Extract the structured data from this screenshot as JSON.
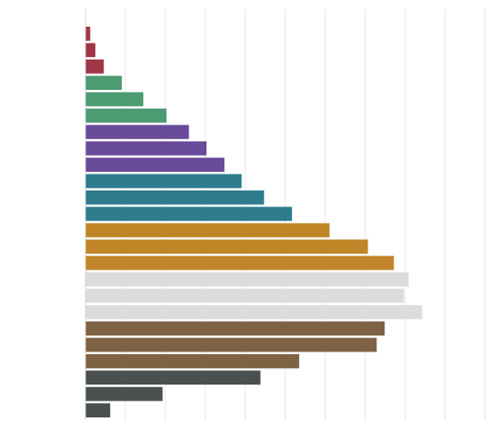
{
  "chart_data": {
    "type": "bar",
    "orientation": "horizontal",
    "xlim": [
      0,
      100
    ],
    "grid": true,
    "series": [
      {
        "color": "#a13646",
        "values": [
          1.2,
          2.5,
          4.6
        ]
      },
      {
        "color": "#4c9b72",
        "values": [
          9.1,
          14.5,
          20.3
        ]
      },
      {
        "color": "#6a4a9a",
        "values": [
          25.9,
          30.3,
          34.8
        ]
      },
      {
        "color": "#2e7c8d",
        "values": [
          39.1,
          44.7,
          51.7
        ]
      },
      {
        "color": "#bf8526",
        "values": [
          61.1,
          70.7,
          77.2
        ]
      },
      {
        "color": "#dcdcdc",
        "values": [
          80.9,
          79.7,
          84.3
        ]
      },
      {
        "color": "#7d6343",
        "values": [
          74.9,
          72.9,
          53.5
        ]
      },
      {
        "color": "#4a4f4f",
        "values": [
          43.8,
          19.3,
          6.2
        ]
      }
    ]
  }
}
